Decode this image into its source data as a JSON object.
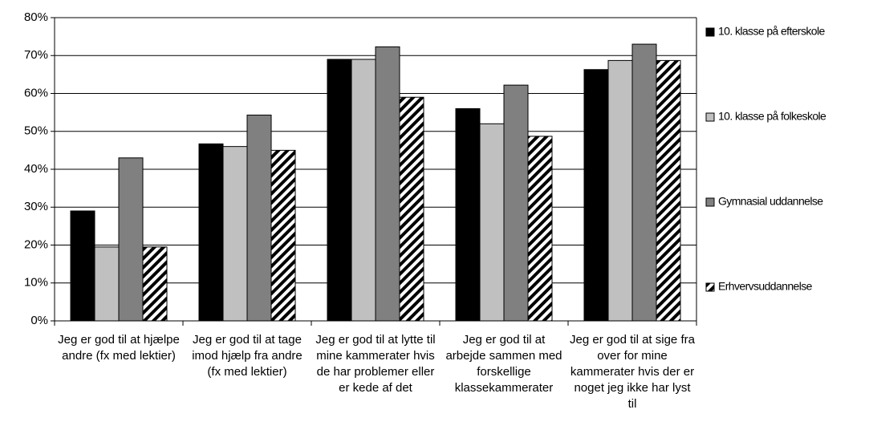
{
  "chart_data": {
    "type": "bar",
    "categories": [
      "Jeg er god til at hjælpe andre (fx med lektier)",
      "Jeg er god til at tage imod hjælp fra andre (fx med lektier)",
      "Jeg er god til at lytte til mine kammerater hvis de har problemer eller er kede af det",
      "Jeg er god til at arbejde sammen med forskellige klassekammerater",
      "Jeg er god til at sige fra over for mine kammerater hvis der er noget jeg ikke har lyst til"
    ],
    "series": [
      {
        "name": "10. klasse på efterskole",
        "color": "#000000",
        "values": [
          29,
          46.7,
          69,
          56,
          66.3
        ]
      },
      {
        "name": "10. klasse på folkeskole",
        "color": "#c0c0c0",
        "values": [
          19.5,
          46,
          69,
          52,
          68.7
        ]
      },
      {
        "name": "Gymnasial uddannelse",
        "color": "#808080",
        "values": [
          43,
          54.3,
          72.3,
          62.2,
          73
        ]
      },
      {
        "name": "Erhvervsuddannelse",
        "color": "#ffffff",
        "pattern": "hatch",
        "values": [
          19.5,
          45,
          59,
          48.7,
          68.7
        ]
      }
    ],
    "ylim": [
      0,
      80
    ],
    "yticks": [
      {
        "value": 0,
        "label": "0%"
      },
      {
        "value": 10,
        "label": "10%"
      },
      {
        "value": 20,
        "label": "20%"
      },
      {
        "value": 30,
        "label": "30%"
      },
      {
        "value": 40,
        "label": "40%"
      },
      {
        "value": 50,
        "label": "50%"
      },
      {
        "value": 60,
        "label": "60%"
      },
      {
        "value": 70,
        "label": "70%"
      },
      {
        "value": 80,
        "label": "80%"
      }
    ],
    "grid": true,
    "legend": "right"
  }
}
